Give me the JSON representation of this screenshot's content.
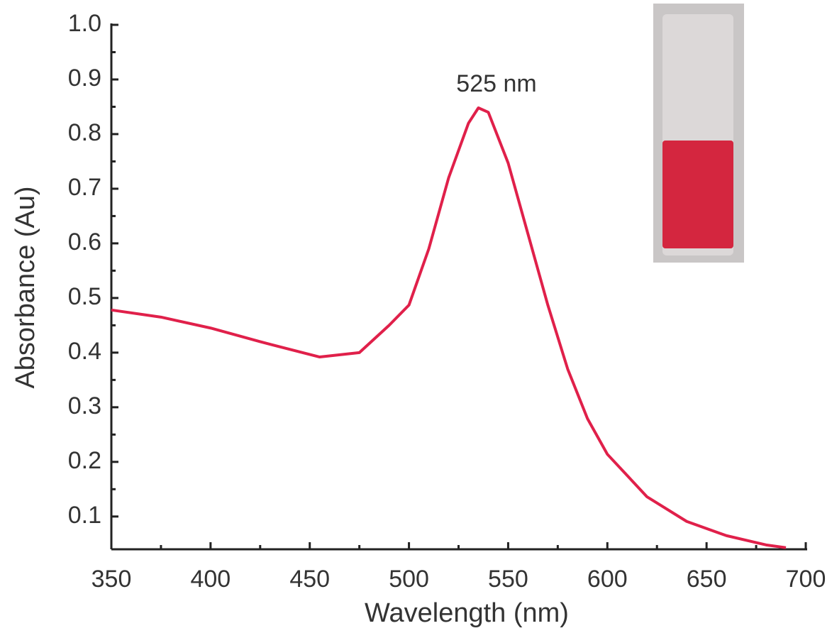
{
  "chart_data": {
    "type": "line",
    "x_label": "Wavelength (nm)",
    "y_label": "Absorbance (Au)",
    "annotation": "525 nm",
    "x": [
      350,
      375,
      400,
      425,
      455,
      475,
      490,
      500,
      510,
      520,
      530,
      535,
      540,
      550,
      560,
      570,
      580,
      590,
      600,
      620,
      640,
      660,
      680,
      690
    ],
    "series": [
      {
        "color": "#e0204a",
        "values": [
          0.478,
          0.465,
          0.445,
          0.42,
          0.392,
          0.4,
          0.45,
          0.487,
          0.59,
          0.72,
          0.82,
          0.848,
          0.84,
          0.747,
          0.617,
          0.487,
          0.37,
          0.279,
          0.214,
          0.136,
          0.091,
          0.065,
          0.048,
          0.043
        ]
      }
    ],
    "xlim": [
      350,
      700
    ],
    "xticks": [
      350,
      400,
      450,
      500,
      550,
      600,
      650,
      700
    ],
    "ylim": [
      0.04,
      1.0
    ],
    "yticks": [
      0.1,
      0.2,
      0.3,
      0.4,
      0.5,
      0.6,
      0.7,
      0.8,
      0.9,
      {
        "value": 1,
        "label": "1.0"
      }
    ],
    "grid": false
  }
}
